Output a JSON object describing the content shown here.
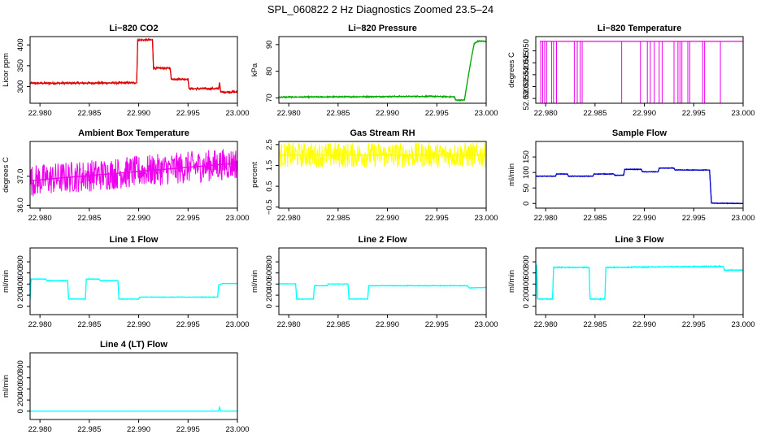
{
  "title": "SPL_060822 2 Hz Diagnostics Zoomed 23.5–24",
  "chart_data": [
    {
      "type": "line",
      "title": "Li−820 CO2",
      "ylabel": "Licor ppm",
      "color": "#dd0000",
      "xlim": [
        22.979,
        23.0
      ],
      "ylim": [
        260,
        420
      ],
      "yticks": [
        300,
        350,
        400
      ],
      "ytick_labels": [
        "300",
        "350",
        "400"
      ],
      "xticks": [
        22.98,
        22.985,
        22.99,
        22.995,
        23.0
      ],
      "xtick_labels": [
        "22.980",
        "22.985",
        "22.990",
        "22.995",
        "23.000"
      ],
      "series": [
        {
          "values": [
            [
              22.979,
              308
            ],
            [
              22.9898,
              309
            ],
            [
              22.9899,
              412
            ],
            [
              22.9914,
              412
            ],
            [
              22.9915,
              344
            ],
            [
              22.9932,
              344
            ],
            [
              22.9933,
              318
            ],
            [
              22.995,
              318
            ],
            [
              22.9951,
              295
            ],
            [
              22.9981,
              295
            ],
            [
              22.9982,
              310
            ],
            [
              22.9983,
              287
            ],
            [
              23.0,
              287
            ]
          ],
          "noise": 3
        }
      ]
    },
    {
      "type": "line",
      "title": "Li−820 Pressure",
      "ylabel": "kPa",
      "color": "#00aa00",
      "xlim": [
        22.979,
        23.0
      ],
      "ylim": [
        68,
        93
      ],
      "yticks": [
        70,
        80,
        90
      ],
      "ytick_labels": [
        "70",
        "80",
        "90"
      ],
      "xticks": [
        22.98,
        22.985,
        22.99,
        22.995,
        23.0
      ],
      "xtick_labels": [
        "22.980",
        "22.985",
        "22.990",
        "22.995",
        "23.000"
      ],
      "series": [
        {
          "values": [
            [
              22.979,
              70.3
            ],
            [
              22.9945,
              70.6
            ],
            [
              22.9968,
              70.4
            ],
            [
              22.9969,
              69.2
            ],
            [
              22.9978,
              69.2
            ],
            [
              22.998,
              74
            ],
            [
              22.9985,
              85
            ],
            [
              22.9988,
              90.5
            ],
            [
              22.9992,
              91.3
            ],
            [
              23.0,
              91.2
            ]
          ],
          "noise": 0.3
        }
      ]
    },
    {
      "type": "line",
      "title": "Li−820 Temperature",
      "ylabel": "degrees C",
      "color": "#ee00ee",
      "xlim": [
        22.979,
        23.0
      ],
      "ylim": [
        52.028,
        52.056
      ],
      "yticks": [
        52.03,
        52.035,
        52.04,
        52.045,
        52.05
      ],
      "ytick_labels": [
        "52.030",
        "52.035",
        "52.040",
        "52.045",
        "52.050"
      ],
      "xticks": [
        22.98,
        22.985,
        22.99,
        22.995,
        23.0
      ],
      "xtick_labels": [
        "22.980",
        "22.985",
        "22.990",
        "22.995",
        "23.000"
      ],
      "base": 52.054,
      "low": 52.028,
      "drops": [
        22.9795,
        22.9797,
        22.9799,
        22.9801,
        22.9806,
        22.9808,
        22.9811,
        22.9829,
        22.9832,
        22.9835,
        22.9837,
        22.9877,
        22.9896,
        22.9903,
        22.9906,
        22.991,
        22.9915,
        22.9918,
        22.993,
        22.9934,
        22.9936,
        22.9938,
        22.9944,
        22.9946,
        22.9959,
        22.9961,
        22.9977
      ]
    },
    {
      "type": "line",
      "title": "Ambient Box Temperature",
      "ylabel": "degrees C",
      "color": "#ee00ee",
      "xlim": [
        22.979,
        23.0
      ],
      "ylim": [
        35.9,
        38.2
      ],
      "yticks": [
        36.0,
        37.0
      ],
      "ytick_labels": [
        "36.0",
        "37.0"
      ],
      "xticks": [
        22.98,
        22.985,
        22.99,
        22.995,
        23.0
      ],
      "xtick_labels": [
        "22.980",
        "22.985",
        "22.990",
        "22.995",
        "23.000"
      ],
      "series": [
        {
          "values": [
            [
              22.979,
              36.85
            ],
            [
              23.0,
              37.45
            ]
          ],
          "noise": 0.55
        }
      ]
    },
    {
      "type": "line",
      "title": "Gas Stream RH",
      "ylabel": "percent",
      "color": "#ffff00",
      "xlim": [
        22.979,
        23.0
      ],
      "ylim": [
        -0.55,
        2.65
      ],
      "yticks": [
        -0.5,
        0.5,
        1.5,
        2.5
      ],
      "ytick_labels": [
        "−0.5",
        "0.5",
        "1.5",
        "2.5"
      ],
      "xticks": [
        22.98,
        22.985,
        22.99,
        22.995,
        23.0
      ],
      "xtick_labels": [
        "22.980",
        "22.985",
        "22.990",
        "22.995",
        "23.000"
      ],
      "series": [
        {
          "values": [
            [
              22.979,
              2.0
            ],
            [
              23.0,
              2.0
            ]
          ],
          "noise": 0.6
        }
      ]
    },
    {
      "type": "line",
      "title": "Sample Flow",
      "ylabel": "ml/min",
      "color": "#0000cc",
      "xlim": [
        22.979,
        23.0
      ],
      "ylim": [
        -15,
        200
      ],
      "yticks": [
        0,
        50,
        100,
        150
      ],
      "ytick_labels": [
        "0",
        "50",
        "100",
        "150"
      ],
      "xticks": [
        22.98,
        22.985,
        22.99,
        22.995,
        23.0
      ],
      "xtick_labels": [
        "22.980",
        "22.985",
        "22.990",
        "22.995",
        "23.000"
      ],
      "series": [
        {
          "values": [
            [
              22.979,
              88
            ],
            [
              22.981,
              88
            ],
            [
              22.9811,
              95
            ],
            [
              22.9822,
              95
            ],
            [
              22.9823,
              88
            ],
            [
              22.9848,
              88
            ],
            [
              22.9849,
              95
            ],
            [
              22.9869,
              95
            ],
            [
              22.987,
              91
            ],
            [
              22.9879,
              91
            ],
            [
              22.988,
              110
            ],
            [
              22.9897,
              110
            ],
            [
              22.9898,
              102
            ],
            [
              22.9914,
              102
            ],
            [
              22.9915,
              114
            ],
            [
              22.993,
              114
            ],
            [
              22.9931,
              108
            ],
            [
              22.9966,
              108
            ],
            [
              22.9968,
              1
            ],
            [
              23.0,
              0
            ]
          ],
          "noise": 1.5
        }
      ]
    },
    {
      "type": "line",
      "title": "Line 1 Flow",
      "ylabel": "ml/min",
      "color": "#00ffff",
      "xlim": [
        22.979,
        23.0
      ],
      "ylim": [
        -150,
        1050
      ],
      "yticks": [
        0,
        200,
        400,
        600,
        800
      ],
      "ytick_labels": [
        "0",
        "200",
        "400",
        "600",
        "800"
      ],
      "xticks": [
        22.98,
        22.985,
        22.99,
        22.995,
        23.0
      ],
      "xtick_labels": [
        "22.980",
        "22.985",
        "22.990",
        "22.995",
        "23.000"
      ],
      "series": [
        {
          "values": [
            [
              22.979,
              130
            ],
            [
              22.9791,
              490
            ],
            [
              22.9806,
              490
            ],
            [
              22.9807,
              460
            ],
            [
              22.9828,
              460
            ],
            [
              22.9829,
              130
            ],
            [
              22.9846,
              130
            ],
            [
              22.9847,
              490
            ],
            [
              22.986,
              490
            ],
            [
              22.9861,
              460
            ],
            [
              22.9879,
              460
            ],
            [
              22.988,
              130
            ],
            [
              22.99,
              130
            ],
            [
              22.9901,
              165
            ],
            [
              22.998,
              165
            ],
            [
              22.9981,
              380
            ],
            [
              22.9985,
              410
            ],
            [
              23.0,
              410
            ]
          ],
          "noise": 7
        }
      ]
    },
    {
      "type": "line",
      "title": "Line 2 Flow",
      "ylabel": "ml/min",
      "color": "#00ffff",
      "xlim": [
        22.979,
        23.0
      ],
      "ylim": [
        -150,
        1050
      ],
      "yticks": [
        0,
        200,
        400,
        600,
        800
      ],
      "ytick_labels": [
        "0",
        "200",
        "400",
        "600",
        "800"
      ],
      "xticks": [
        22.98,
        22.985,
        22.99,
        22.995,
        23.0
      ],
      "xtick_labels": [
        "22.980",
        "22.985",
        "22.990",
        "22.995",
        "23.000"
      ],
      "series": [
        {
          "values": [
            [
              22.979,
              405
            ],
            [
              22.9807,
              405
            ],
            [
              22.9808,
              130
            ],
            [
              22.9825,
              130
            ],
            [
              22.9826,
              370
            ],
            [
              22.9839,
              370
            ],
            [
              22.984,
              400
            ],
            [
              22.986,
              400
            ],
            [
              22.9861,
              130
            ],
            [
              22.988,
              130
            ],
            [
              22.9881,
              370
            ],
            [
              22.9981,
              370
            ],
            [
              22.9983,
              330
            ],
            [
              23.0,
              340
            ]
          ],
          "noise": 7
        }
      ]
    },
    {
      "type": "line",
      "title": "Line 3 Flow",
      "ylabel": "ml/min",
      "color": "#00ffff",
      "xlim": [
        22.979,
        23.0
      ],
      "ylim": [
        -150,
        1050
      ],
      "yticks": [
        0,
        200,
        400,
        600,
        800
      ],
      "ytick_labels": [
        "0",
        "200",
        "400",
        "600",
        "800"
      ],
      "xticks": [
        22.98,
        22.985,
        22.99,
        22.995,
        23.0
      ],
      "xtick_labels": [
        "22.980",
        "22.985",
        "22.990",
        "22.995",
        "23.000"
      ],
      "series": [
        {
          "values": [
            [
              22.979,
              130
            ],
            [
              22.9791,
              750
            ],
            [
              22.9792,
              130
            ],
            [
              22.9807,
              130
            ],
            [
              22.9808,
              700
            ],
            [
              22.9844,
              700
            ],
            [
              22.9845,
              130
            ],
            [
              22.986,
              130
            ],
            [
              22.9861,
              700
            ],
            [
              22.998,
              720
            ],
            [
              22.9981,
              650
            ],
            [
              23.0,
              650
            ]
          ],
          "noise": 12
        }
      ]
    },
    {
      "type": "line",
      "title": "Line 4 (LT) Flow",
      "ylabel": "ml/min",
      "color": "#00ffff",
      "xlim": [
        22.979,
        23.0
      ],
      "ylim": [
        -150,
        1050
      ],
      "yticks": [
        0,
        200,
        400,
        600,
        800
      ],
      "ytick_labels": [
        "0",
        "200",
        "400",
        "600",
        "800"
      ],
      "xticks": [
        22.98,
        22.985,
        22.99,
        22.995,
        23.0
      ],
      "xtick_labels": [
        "22.980",
        "22.985",
        "22.990",
        "22.995",
        "23.000"
      ],
      "series": [
        {
          "values": [
            [
              22.979,
              2
            ],
            [
              22.9981,
              2
            ],
            [
              22.9982,
              70
            ],
            [
              22.9983,
              2
            ],
            [
              23.0,
              2
            ]
          ],
          "noise": 1
        }
      ]
    }
  ]
}
